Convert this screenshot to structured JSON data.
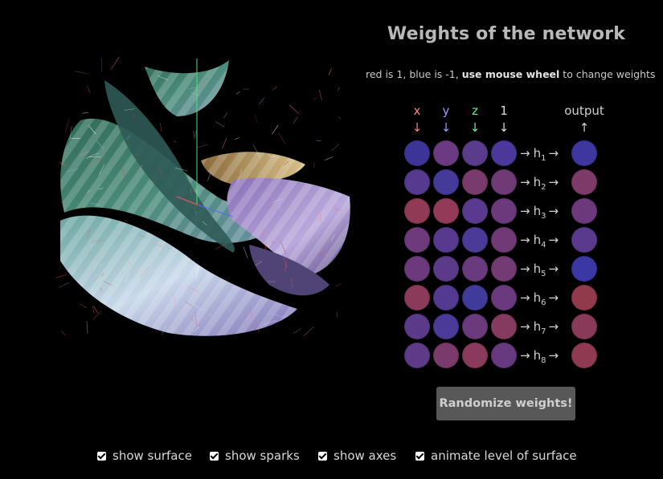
{
  "panel": {
    "title": "Weights of the network",
    "subtitle_pre": "red is 1, blue is -1, ",
    "subtitle_bold": "use mouse wheel",
    "subtitle_post": " to change weights"
  },
  "inputs": [
    {
      "label": "x",
      "arrow": "↓",
      "color": "#ff8080"
    },
    {
      "label": "y",
      "arrow": "↓",
      "color": "#9999ff"
    },
    {
      "label": "z",
      "arrow": "↓",
      "color": "#66ee99"
    },
    {
      "label": "1",
      "arrow": "↓",
      "color": "#dddddd"
    }
  ],
  "output": {
    "label": "output",
    "arrow": "↑"
  },
  "hidden_units": [
    {
      "name": "h",
      "sub": "1"
    },
    {
      "name": "h",
      "sub": "2"
    },
    {
      "name": "h",
      "sub": "3"
    },
    {
      "name": "h",
      "sub": "4"
    },
    {
      "name": "h",
      "sub": "5"
    },
    {
      "name": "h",
      "sub": "6"
    },
    {
      "name": "h",
      "sub": "7"
    },
    {
      "name": "h",
      "sub": "8"
    }
  ],
  "arrow_glyph": "→",
  "weight_colors": [
    [
      "#3c3597",
      "#6b3a80",
      "#5a3c8c",
      "#4c389a"
    ],
    [
      "#553a8f",
      "#453a9a",
      "#793a6c",
      "#6f3a76"
    ],
    [
      "#903a55",
      "#933a58",
      "#5a3a8e",
      "#6c3a7c"
    ],
    [
      "#6e3a7c",
      "#573a8f",
      "#4b3a98",
      "#713a77"
    ],
    [
      "#6c3a7c",
      "#5c3a8a",
      "#6a3a7e",
      "#733a74"
    ],
    [
      "#8b3a5a",
      "#533a90",
      "#403a9b",
      "#6b3a7e"
    ],
    [
      "#5c3a8a",
      "#4b3a98",
      "#6b3a7c",
      "#853a60"
    ],
    [
      "#5e3a88",
      "#7a3a6c",
      "#8a3a5c",
      "#673a80"
    ]
  ],
  "output_colors": [
    "#3f37a0",
    "#7e3a68",
    "#6c3a7c",
    "#5a3a8c",
    "#3b37a4",
    "#903a4c",
    "#883a58",
    "#903a52"
  ],
  "randomize_label": "Randomize weights!",
  "checkboxes": [
    {
      "label": "show surface",
      "checked": true
    },
    {
      "label": "show sparks",
      "checked": true
    },
    {
      "label": "show axes",
      "checked": true
    },
    {
      "label": "animate level of surface",
      "checked": true
    }
  ]
}
